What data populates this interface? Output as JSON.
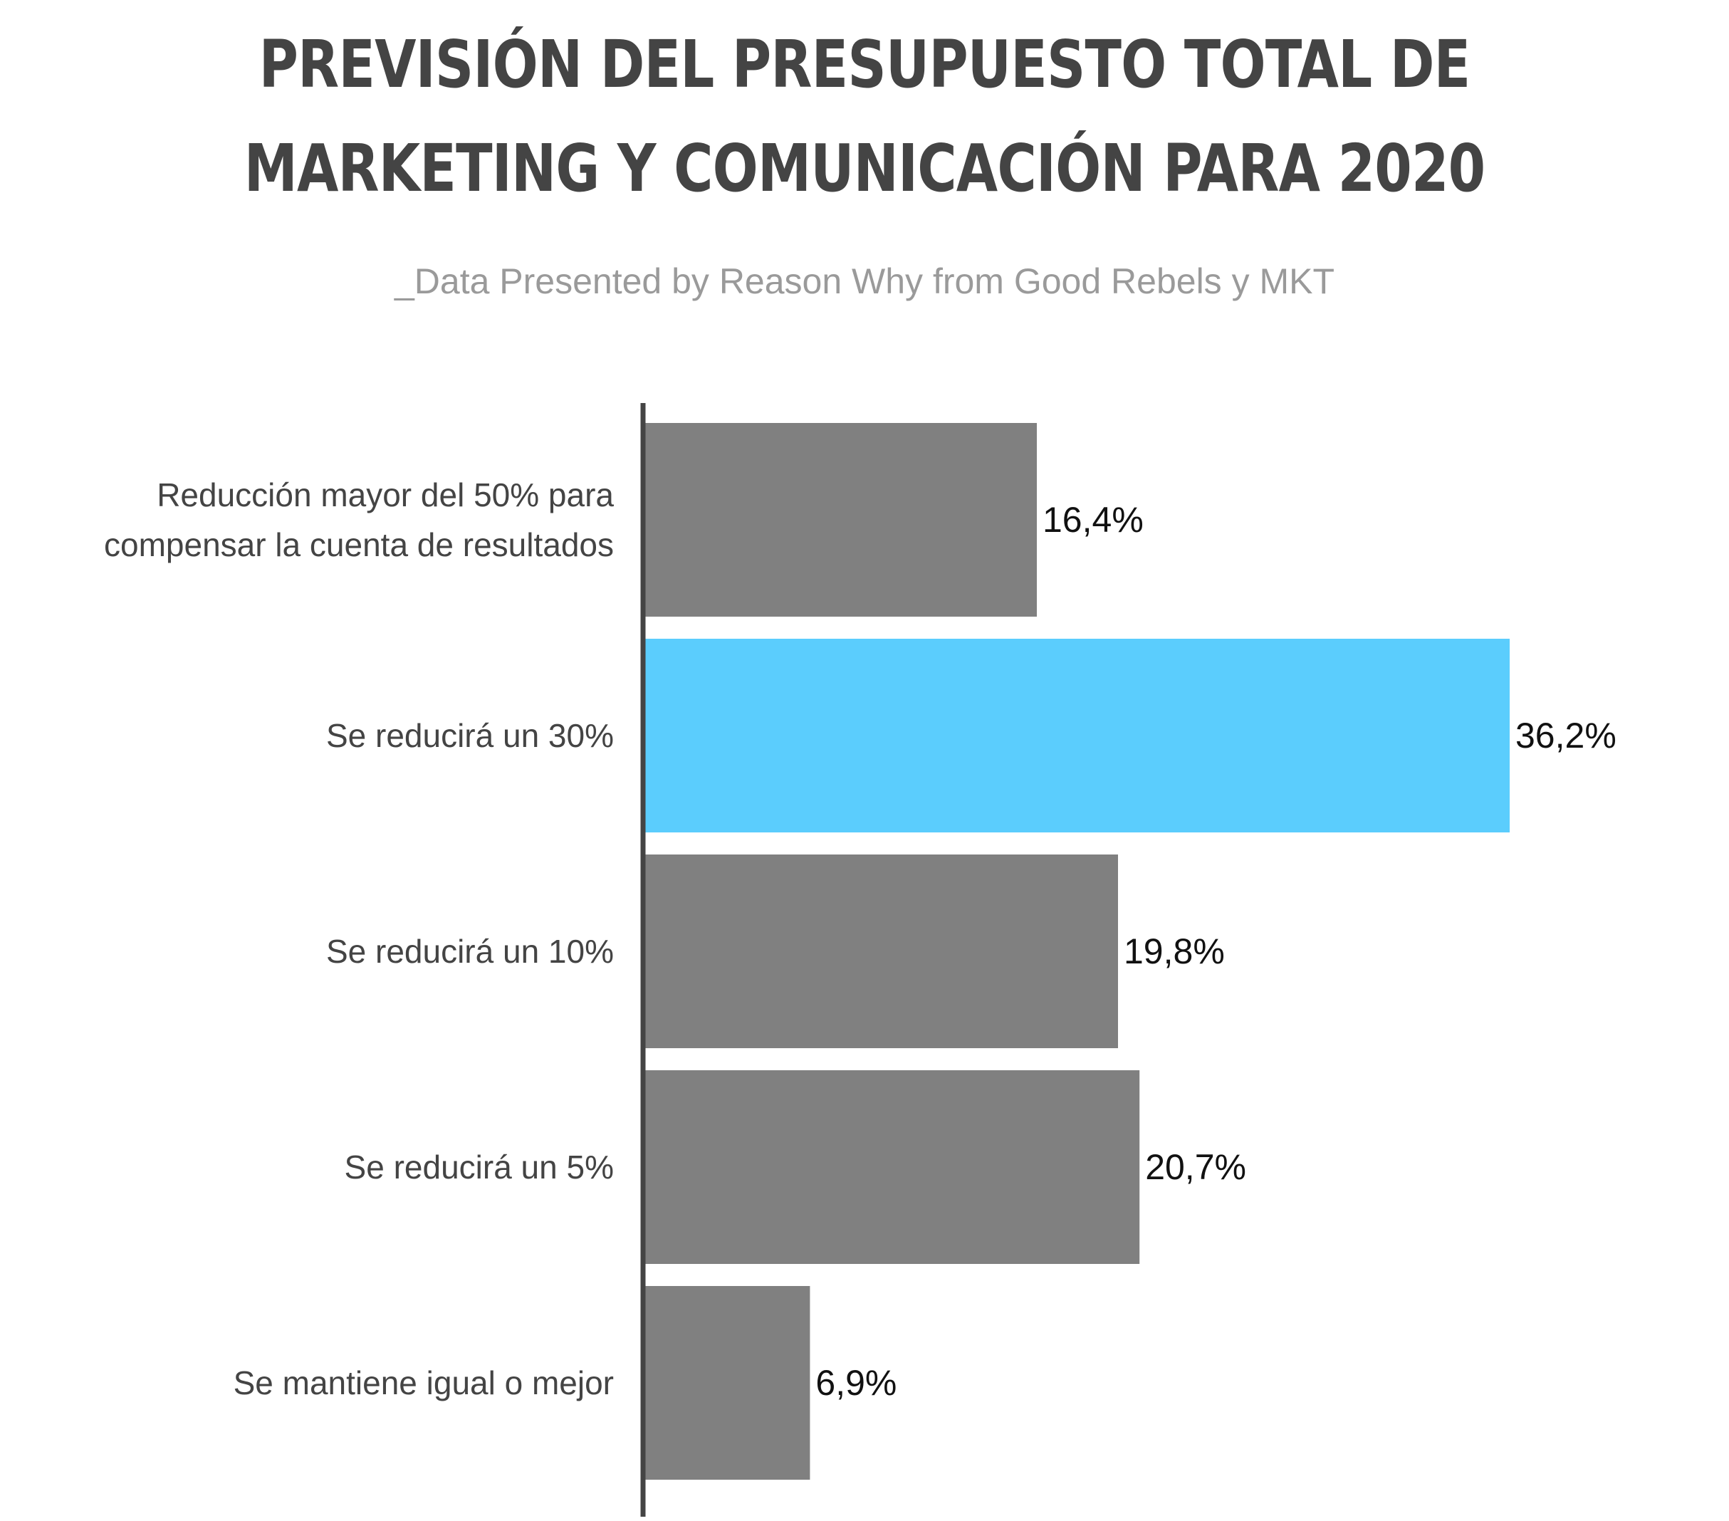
{
  "chart_data": {
    "type": "bar",
    "orientation": "horizontal",
    "title_lines": [
      "PREVISIÓN DEL PRESUPUESTO TOTAL DE",
      "MARKETING Y COMUNICACIÓN PARA 2020"
    ],
    "subtitle": "_Data Presented by Reason Why from Good Rebels y MKT",
    "categories": [
      [
        "Reducción mayor del 50% para",
        "compensar la cuenta de resultados"
      ],
      [
        "Se reducirá un 30%"
      ],
      [
        "Se reducirá un 10%"
      ],
      [
        "Se reducirá un 5%"
      ],
      [
        "Se mantiene igual o mejor"
      ]
    ],
    "values": [
      16.4,
      36.2,
      19.8,
      20.7,
      6.9
    ],
    "value_labels": [
      "16,4%",
      "36,2%",
      "19,8%",
      "20,7%",
      "6,9%"
    ],
    "highlight_index": 1,
    "colors": {
      "bar": "#808080",
      "highlight": "#5bcdfd",
      "axis": "#444444",
      "title": "#444444",
      "subtitle": "#9a9a9a"
    },
    "xlim": [
      0,
      36.2
    ],
    "grid": false,
    "legend": "none"
  }
}
